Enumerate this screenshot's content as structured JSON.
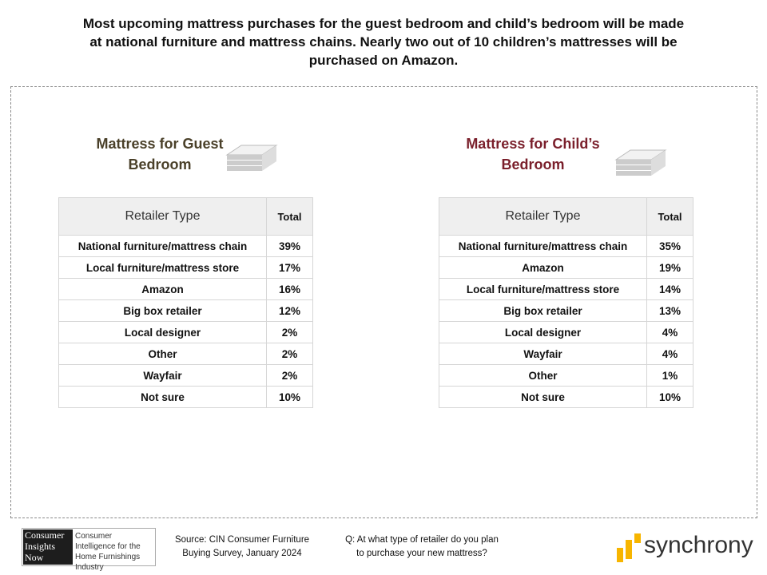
{
  "title": "Most upcoming mattress purchases for the guest bedroom and child’s bedroom will be made at national furniture and mattress chains. Nearly two out of 10 children’s mattresses will be purchased on Amazon.",
  "panels": [
    {
      "heading": "Mattress for Guest Bedroom",
      "table": {
        "header": [
          "Retailer Type",
          "Total"
        ],
        "rows": [
          [
            "National furniture/mattress chain",
            "39%"
          ],
          [
            "Local furniture/mattress store",
            "17%"
          ],
          [
            "Amazon",
            "16%"
          ],
          [
            "Big box retailer",
            "12%"
          ],
          [
            "Local designer",
            "2%"
          ],
          [
            "Other",
            "2%"
          ],
          [
            "Wayfair",
            "2%"
          ],
          [
            "Not sure",
            "10%"
          ]
        ]
      }
    },
    {
      "heading": "Mattress for Child’s Bedroom",
      "table": {
        "header": [
          "Retailer Type",
          "Total"
        ],
        "rows": [
          [
            "National furniture/mattress chain",
            "35%"
          ],
          [
            "Amazon",
            "19%"
          ],
          [
            "Local furniture/mattress store",
            "14%"
          ],
          [
            "Big box retailer",
            "13%"
          ],
          [
            "Local designer",
            "4%"
          ],
          [
            "Wayfair",
            "4%"
          ],
          [
            "Other",
            "1%"
          ],
          [
            "Not sure",
            "10%"
          ]
        ]
      }
    }
  ],
  "footer": {
    "logo_name": [
      "Consumer",
      "Insights",
      "Now"
    ],
    "logo_tagline": "Consumer Intelligence for the Home Furnishings Industry",
    "source": "Source: CIN Consumer Furniture Buying Survey, January 2024",
    "question": "Q: At what type of retailer do you plan to purchase your new mattress?",
    "brand": "synchrony"
  }
}
